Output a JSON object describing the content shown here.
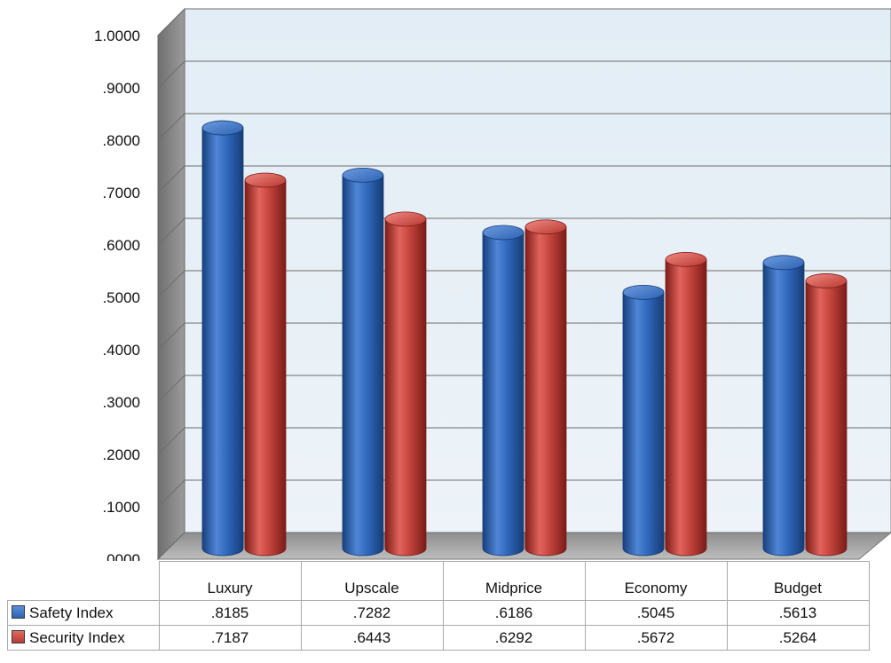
{
  "chart_data": {
    "type": "bar",
    "style": "3d-cylinder",
    "categories": [
      "Luxury",
      "Upscale",
      "Midprice",
      "Economy",
      "Budget"
    ],
    "series": [
      {
        "name": "Safety Index",
        "color": "#2f66b8",
        "values": [
          0.8185,
          0.7282,
          0.6186,
          0.5045,
          0.5613
        ]
      },
      {
        "name": "Security Index",
        "color": "#c0403a",
        "values": [
          0.7187,
          0.6443,
          0.6292,
          0.5672,
          0.5264
        ]
      }
    ],
    "ylim": [
      0,
      1
    ],
    "yticks": [
      ".0000",
      ".1000",
      ".2000",
      ".3000",
      ".4000",
      ".5000",
      ".6000",
      ".7000",
      ".8000",
      ".9000",
      "1.0000"
    ],
    "grid": true,
    "data_table": {
      "rows": [
        {
          "label": "Safety Index",
          "values": [
            ".8185",
            ".7282",
            ".6186",
            ".5045",
            ".5613"
          ]
        },
        {
          "label": "Security Index",
          "values": [
            ".7187",
            ".6443",
            ".6292",
            ".5672",
            ".5264"
          ]
        }
      ]
    }
  }
}
